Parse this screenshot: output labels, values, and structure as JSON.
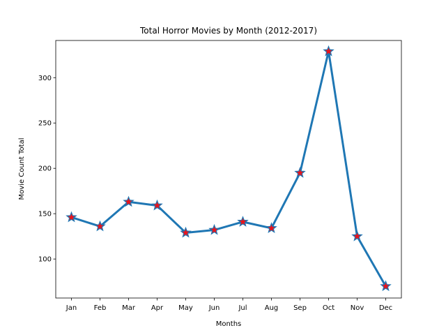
{
  "chart_data": {
    "type": "line",
    "title": "Total Horror Movies by Month (2012-2017)",
    "xlabel": "Months",
    "ylabel": "Movie Count Total",
    "categories": [
      "Jan",
      "Feb",
      "Mar",
      "Apr",
      "May",
      "Jun",
      "Jul",
      "Aug",
      "Sep",
      "Oct",
      "Nov",
      "Dec"
    ],
    "series": [
      {
        "values": [
          146,
          136,
          163,
          159,
          129,
          132,
          141,
          134,
          195,
          329,
          125,
          70
        ],
        "color": "#1f77b4",
        "marker": "star",
        "marker_face_color": "#e8141c",
        "marker_edge_color": "#1f77b4"
      }
    ],
    "ylim": [
      57,
      341
    ],
    "yticks": [
      100,
      150,
      200,
      250,
      300
    ],
    "grid": false,
    "legend": "none"
  }
}
